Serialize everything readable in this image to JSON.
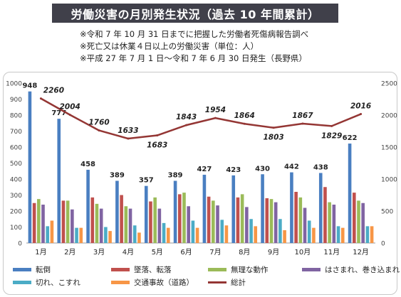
{
  "header": {
    "title": "労働災害の月別発生状況（過去 10 年間累計）",
    "notes": [
      "※令和 7 年 10 月 31 日までに把握した労働者死傷病報告調べ",
      "※死亡又は休業４日以上の労働災害（単位：人）",
      "※平成 27 年 7 月 1 日～令和 7 年 6 月 30 日発生（長野県）"
    ]
  },
  "chart_data": {
    "type": "bar",
    "categories": [
      "1月",
      "2月",
      "3月",
      "4月",
      "5月",
      "6月",
      "7月",
      "8月",
      "9月",
      "10月",
      "11月",
      "12月"
    ],
    "series": [
      {
        "name": "転倒",
        "color": "#4a7fc1",
        "values": [
          948,
          777,
          458,
          389,
          357,
          389,
          427,
          423,
          430,
          442,
          438,
          622
        ]
      },
      {
        "name": "墜落、転落",
        "color": "#c0504d",
        "values": [
          250,
          265,
          285,
          300,
          260,
          305,
          290,
          285,
          280,
          320,
          350,
          315
        ]
      },
      {
        "name": "無理な動作",
        "color": "#9bbb59",
        "values": [
          275,
          265,
          245,
          230,
          285,
          315,
          265,
          305,
          275,
          285,
          255,
          265
        ]
      },
      {
        "name": "はさまれ、巻き込まれ",
        "color": "#8064a2",
        "values": [
          240,
          210,
          215,
          215,
          215,
          230,
          235,
          225,
          255,
          220,
          240,
          250
        ]
      },
      {
        "name": "切れ、こすれ",
        "color": "#4bacc6",
        "values": [
          105,
          95,
          100,
          110,
          125,
          140,
          145,
          150,
          150,
          140,
          105,
          105
        ]
      },
      {
        "name": "交通事故（道路）",
        "color": "#f79646",
        "values": [
          140,
          95,
          75,
          65,
          95,
          95,
          110,
          105,
          80,
          95,
          95,
          105
        ]
      }
    ],
    "line": {
      "name": "総計",
      "color": "#943634",
      "values": [
        2260,
        2004,
        1760,
        1633,
        1683,
        1843,
        1954,
        1864,
        1803,
        1867,
        1829,
        2016
      ]
    },
    "bar_labels": [
      948,
      777,
      458,
      389,
      357,
      389,
      427,
      423,
      430,
      442,
      438,
      622
    ],
    "ylim_left": [
      0,
      1000
    ],
    "yticks_left": [
      0,
      100,
      200,
      300,
      400,
      500,
      600,
      700,
      800,
      900,
      1000
    ],
    "ylim_right": [
      0,
      2500
    ],
    "yticks_right": [
      0,
      500,
      1000,
      1500,
      2000,
      2500
    ],
    "legend_position": "bottom"
  }
}
